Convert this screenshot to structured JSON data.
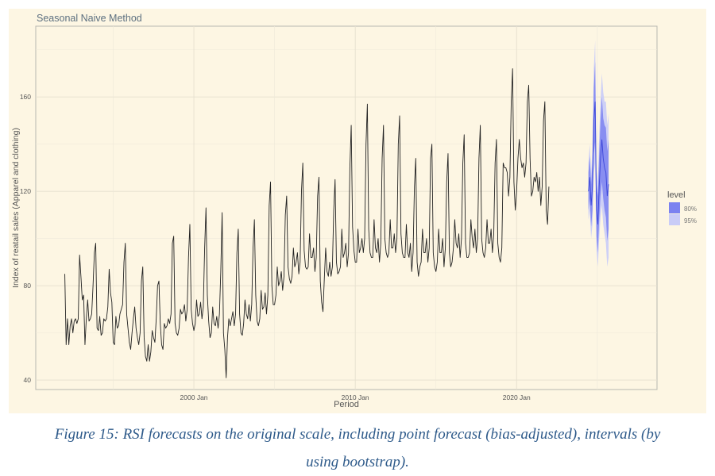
{
  "chart_data": {
    "type": "line",
    "title": "Seasonal Naive Method",
    "xlabel": "Period",
    "ylabel": "Index of reatail sales (Apparel and clothing)",
    "x_ticks": [
      "2000 Jan",
      "2010 Jan",
      "2020 Jan"
    ],
    "y_ticks": [
      40,
      80,
      120,
      160
    ],
    "xlim": [
      1990.2,
      2028.7
    ],
    "ylim": [
      36,
      190
    ],
    "grid": true,
    "x_start": 1992.0,
    "x_step": 0.08333333,
    "history": [
      85,
      55,
      66,
      55,
      63,
      66,
      60,
      65,
      66,
      64,
      66,
      93,
      84,
      74,
      76,
      55,
      66,
      74,
      65,
      66,
      68,
      80,
      94,
      98,
      62,
      61,
      67,
      59,
      60,
      66,
      65,
      66,
      71,
      87,
      77,
      73,
      56,
      55,
      67,
      62,
      63,
      68,
      70,
      72,
      90,
      98,
      68,
      62,
      56,
      53,
      60,
      66,
      71,
      62,
      58,
      55,
      60,
      82,
      88,
      58,
      50,
      48,
      55,
      48,
      52,
      61,
      58,
      56,
      66,
      80,
      82,
      64,
      55,
      53,
      64,
      62,
      63,
      66,
      64,
      68,
      98,
      101,
      64,
      60,
      59,
      62,
      70,
      68,
      69,
      72,
      65,
      70,
      92,
      106,
      70,
      64,
      61,
      64,
      74,
      67,
      68,
      73,
      66,
      71,
      96,
      113,
      76,
      65,
      58,
      60,
      71,
      64,
      63,
      67,
      62,
      68,
      86,
      111,
      60,
      53,
      41,
      58,
      66,
      63,
      66,
      69,
      63,
      68,
      94,
      104,
      68,
      60,
      59,
      64,
      74,
      68,
      66,
      72,
      65,
      72,
      96,
      108,
      76,
      65,
      63,
      66,
      78,
      70,
      71,
      77,
      68,
      76,
      114,
      124,
      80,
      72,
      72,
      76,
      88,
      80,
      82,
      86,
      78,
      84,
      110,
      118,
      88,
      83,
      81,
      84,
      96,
      88,
      90,
      94,
      85,
      90,
      120,
      132,
      95,
      88,
      87,
      88,
      102,
      92,
      92,
      96,
      86,
      92,
      118,
      126,
      82,
      73,
      69,
      83,
      96,
      86,
      84,
      90,
      84,
      88,
      112,
      125,
      90,
      85,
      86,
      88,
      104,
      92,
      94,
      98,
      88,
      94,
      130,
      148,
      105,
      95,
      90,
      90,
      104,
      94,
      96,
      100,
      94,
      100,
      140,
      157,
      104,
      94,
      92,
      92,
      108,
      96,
      94,
      100,
      90,
      98,
      134,
      148,
      100,
      94,
      92,
      94,
      108,
      96,
      96,
      102,
      94,
      100,
      140,
      152,
      102,
      94,
      92,
      92,
      106,
      94,
      92,
      98,
      86,
      94,
      122,
      134,
      90,
      84,
      88,
      90,
      104,
      94,
      94,
      100,
      90,
      96,
      134,
      140,
      94,
      88,
      86,
      90,
      104,
      94,
      94,
      100,
      88,
      96,
      124,
      136,
      94,
      88,
      90,
      96,
      108,
      98,
      96,
      102,
      92,
      100,
      132,
      144,
      98,
      92,
      92,
      94,
      108,
      100,
      96,
      104,
      94,
      100,
      134,
      148,
      100,
      94,
      92,
      96,
      108,
      98,
      98,
      104,
      94,
      102,
      132,
      142,
      98,
      92,
      90,
      96,
      132,
      130,
      130,
      128,
      118,
      126,
      158,
      172,
      124,
      112,
      120,
      134,
      142,
      134,
      130,
      132,
      126,
      132,
      158,
      165,
      134,
      118,
      120,
      126,
      124,
      128,
      120,
      126,
      114,
      122,
      150,
      158,
      112,
      106,
      122
    ],
    "forecast_start": 2024.45,
    "forecast_step": 0.08333333,
    "forecast_mean": [
      120,
      126,
      114,
      122,
      150,
      158,
      112,
      106,
      122,
      134,
      142,
      134,
      130,
      128,
      118,
      123
    ],
    "forecast_80_lower": [
      112,
      117,
      105,
      112,
      136,
      141,
      101,
      94,
      108,
      118,
      124,
      117,
      112,
      109,
      99,
      104
    ],
    "forecast_80_upper": [
      128,
      135,
      123,
      132,
      164,
      175,
      123,
      118,
      136,
      150,
      160,
      151,
      148,
      147,
      137,
      142
    ],
    "forecast_95_lower": [
      108,
      112,
      100,
      106,
      128,
      132,
      95,
      88,
      100,
      109,
      114,
      106,
      102,
      98,
      88,
      92
    ],
    "forecast_95_upper": [
      132,
      140,
      128,
      138,
      172,
      184,
      129,
      124,
      144,
      159,
      170,
      162,
      158,
      158,
      148,
      153
    ],
    "legend": {
      "title": "level",
      "entries": [
        "80%",
        "95%"
      ],
      "placement": "right"
    },
    "colors": {
      "panel_bg": "#fdf6e3",
      "plot_bg": "#fdf6e3",
      "grid": "#e8e2d2",
      "line": "#222222",
      "band_80": "#7b82f0",
      "band_95": "#c9ccf7",
      "axis_text": "#555555",
      "title_text": "#5d7080"
    }
  },
  "caption": {
    "line1": "Figure 15: RSI forecasts on the original scale, including point forecast (bias-adjusted), intervals (by",
    "line2": "using bootstrap)."
  }
}
